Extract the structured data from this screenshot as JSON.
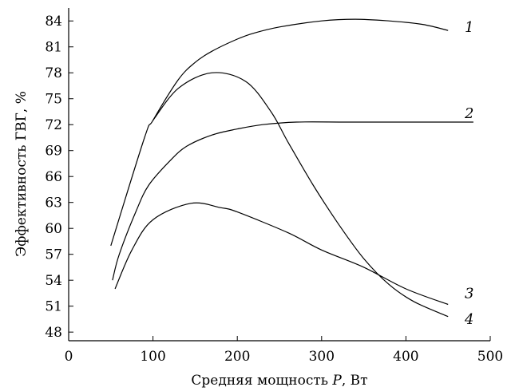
{
  "chart_data": {
    "type": "line",
    "title": "",
    "xlabel_prefix": "Средняя мощность ",
    "xlabel_var": "P",
    "xlabel_suffix": ", Вт",
    "ylabel": "Эффективность ГВГ, %",
    "xlim": [
      0,
      500
    ],
    "ylim": [
      47,
      85.5
    ],
    "x_ticks": [
      0,
      100,
      200,
      300,
      400,
      500
    ],
    "y_ticks": [
      48,
      51,
      54,
      57,
      60,
      63,
      66,
      69,
      72,
      75,
      78,
      81,
      84
    ],
    "series": [
      {
        "name": "1",
        "x": [
          50,
          90,
          100,
          130,
          150,
          170,
          200,
          220,
          250,
          300,
          340,
          380,
          420,
          450
        ],
        "y": [
          58,
          70.5,
          72.5,
          77.2,
          79.2,
          80.5,
          81.9,
          82.6,
          83.3,
          84,
          84.2,
          84,
          83.6,
          82.9
        ]
      },
      {
        "name": "2",
        "x": [
          52,
          60,
          80,
          95,
          120,
          140,
          170,
          200,
          230,
          270,
          330,
          400,
          480
        ],
        "y": [
          54,
          57,
          62,
          65,
          67.8,
          69.5,
          70.8,
          71.5,
          72,
          72.3,
          72.3,
          72.3,
          72.3
        ]
      },
      {
        "name": "3",
        "x": [
          55,
          75,
          100,
          145,
          180,
          200,
          260,
          300,
          350,
          400,
          450
        ],
        "y": [
          53,
          57.5,
          61,
          62.9,
          62.4,
          61.9,
          59.5,
          57.5,
          55.5,
          53,
          51.2
        ]
      },
      {
        "name": "4",
        "x": [
          100,
          130,
          170,
          210,
          240,
          260,
          290,
          320,
          350,
          380,
          410,
          450
        ],
        "y": [
          72.5,
          76.2,
          78,
          77,
          73.5,
          70,
          65,
          60.5,
          56.5,
          53.5,
          51.5,
          49.8
        ]
      }
    ],
    "label_positions_data": [
      {
        "name": "1",
        "x": 465,
        "y": 83.3
      },
      {
        "name": "2",
        "x": 465,
        "y": 73.3
      },
      {
        "name": "3",
        "x": 465,
        "y": 52.5
      },
      {
        "name": "4",
        "x": 465,
        "y": 49.5
      }
    ]
  }
}
